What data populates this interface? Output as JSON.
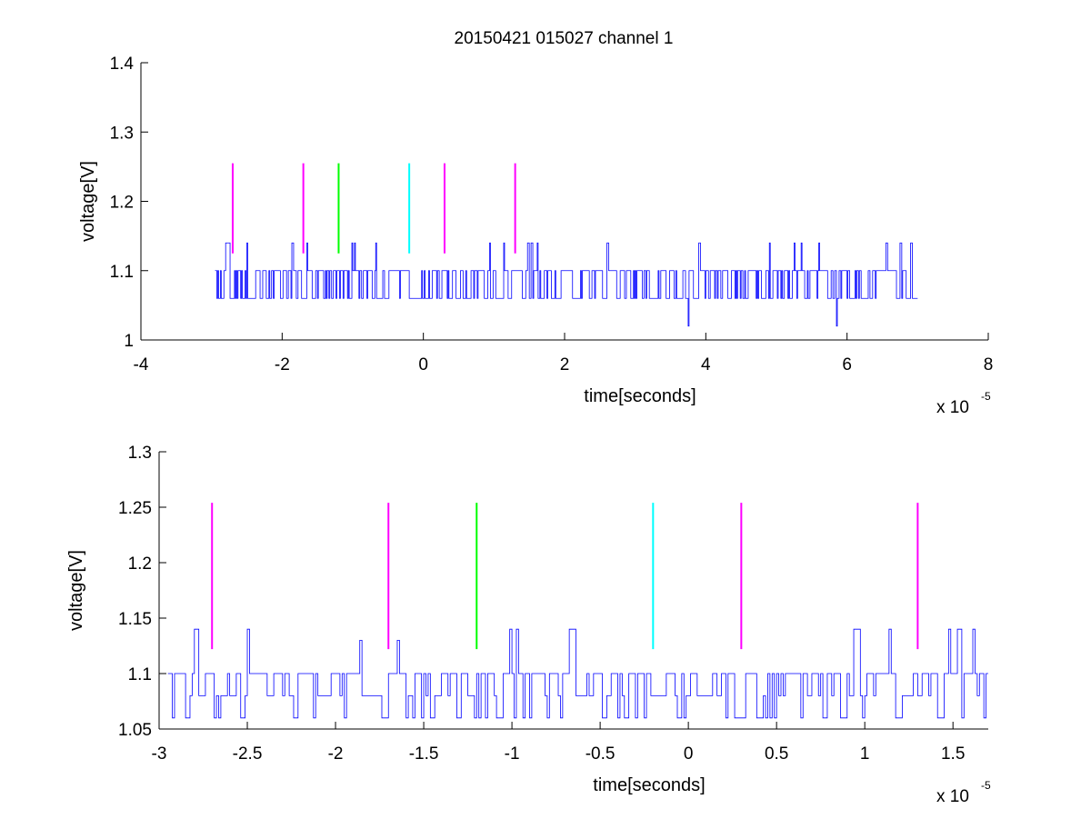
{
  "figure": {
    "title": "20150421 015027 channel 1",
    "background": "#ffffff"
  },
  "chart_data": [
    {
      "type": "line",
      "xlabel": "time[seconds]",
      "ylabel": "voltage[V]",
      "x_exponent_prefix": "x 10",
      "x_exponent_power": "-5",
      "xlim": [
        -4,
        8
      ],
      "ylim": [
        1,
        1.4
      ],
      "xticks": [
        -4,
        -2,
        0,
        2,
        4,
        6,
        8
      ],
      "xtick_labels": [
        "-4",
        "-2",
        "0",
        "2",
        "4",
        "6",
        "8"
      ],
      "yticks": [
        1,
        1.1,
        1.2,
        1.3,
        1.4
      ],
      "ytick_labels": [
        "1",
        "1.1",
        "1.2",
        "1.3",
        "1.4"
      ],
      "grid": false,
      "signal": {
        "color": "#0000ff",
        "x_range": [
          -2.95,
          7.0
        ],
        "levels": [
          1.06,
          1.1
        ],
        "spikes_up": [
          {
            "x": -2.8,
            "y": 1.14
          },
          {
            "x": -2.5,
            "y": 1.14
          },
          {
            "x": -1.86,
            "y": 1.14
          },
          {
            "x": -1.65,
            "y": 1.14
          },
          {
            "x": -1.01,
            "y": 1.14
          },
          {
            "x": -0.98,
            "y": 1.14
          },
          {
            "x": -0.67,
            "y": 1.14
          },
          {
            "x": 0.94,
            "y": 1.14
          },
          {
            "x": 1.14,
            "y": 1.14
          },
          {
            "x": 1.47,
            "y": 1.14
          },
          {
            "x": 1.52,
            "y": 1.14
          },
          {
            "x": 1.54,
            "y": 1.14
          },
          {
            "x": 1.61,
            "y": 1.14
          },
          {
            "x": 1.53,
            "y": 1.14
          },
          {
            "x": 2.6,
            "y": 1.14
          },
          {
            "x": 3.9,
            "y": 1.14
          },
          {
            "x": 4.9,
            "y": 1.14
          },
          {
            "x": 5.25,
            "y": 1.14
          },
          {
            "x": 5.35,
            "y": 1.14
          },
          {
            "x": 5.6,
            "y": 1.14
          },
          {
            "x": 6.55,
            "y": 1.14
          },
          {
            "x": 6.75,
            "y": 1.14
          },
          {
            "x": 6.9,
            "y": 1.14
          }
        ],
        "spikes_down": [
          {
            "x": 3.75,
            "y": 1.02
          },
          {
            "x": 5.85,
            "y": 1.02
          }
        ]
      },
      "markers": {
        "y_bottom": 1.125,
        "y_top": 1.255,
        "lines": [
          {
            "x": -2.7,
            "color": "#ff00ff"
          },
          {
            "x": -1.7,
            "color": "#ff00ff"
          },
          {
            "x": -1.2,
            "color": "#00ff00"
          },
          {
            "x": -0.2,
            "color": "#00ffff"
          },
          {
            "x": 0.3,
            "color": "#ff00ff"
          },
          {
            "x": 1.3,
            "color": "#ff00ff"
          }
        ]
      }
    },
    {
      "type": "line",
      "xlabel": "time[seconds]",
      "ylabel": "voltage[V]",
      "x_exponent_prefix": "x 10",
      "x_exponent_power": "-5",
      "xlim": [
        -3,
        1.7
      ],
      "ylim": [
        1.05,
        1.3
      ],
      "xticks": [
        -3,
        -2.5,
        -2,
        -1.5,
        -1,
        -0.5,
        0,
        0.5,
        1,
        1.5
      ],
      "xtick_labels": [
        "-3",
        "-2.5",
        "-2",
        "-1.5",
        "-1",
        "-0.5",
        "0",
        "0.5",
        "1",
        "1.5"
      ],
      "yticks": [
        1.05,
        1.1,
        1.15,
        1.2,
        1.25,
        1.3
      ],
      "ytick_labels": [
        "1.05",
        "1.1",
        "1.15",
        "1.2",
        "1.25",
        "1.3"
      ],
      "grid": false,
      "signal": {
        "color": "#0000ff",
        "x_range": [
          -2.95,
          1.7
        ],
        "levels": [
          1.06,
          1.08,
          1.1
        ],
        "spikes_up": [
          {
            "x": -2.8,
            "y": 1.14
          },
          {
            "x": -2.5,
            "y": 1.14
          },
          {
            "x": -1.86,
            "y": 1.13
          },
          {
            "x": -1.65,
            "y": 1.13
          },
          {
            "x": -1.01,
            "y": 1.14
          },
          {
            "x": -0.98,
            "y": 1.14
          },
          {
            "x": -0.67,
            "y": 1.14
          },
          {
            "x": 0.94,
            "y": 1.14
          },
          {
            "x": 1.14,
            "y": 1.14
          },
          {
            "x": 1.47,
            "y": 1.14
          },
          {
            "x": 1.52,
            "y": 1.14
          },
          {
            "x": 1.54,
            "y": 1.14
          },
          {
            "x": 1.61,
            "y": 1.14
          }
        ],
        "spikes_down": []
      },
      "markers": {
        "y_bottom": 1.122,
        "y_top": 1.254,
        "lines": [
          {
            "x": -2.7,
            "color": "#ff00ff"
          },
          {
            "x": -1.7,
            "color": "#ff00ff"
          },
          {
            "x": -1.2,
            "color": "#00ff00"
          },
          {
            "x": -0.2,
            "color": "#00ffff"
          },
          {
            "x": 0.3,
            "color": "#ff00ff"
          },
          {
            "x": 1.3,
            "color": "#ff00ff"
          }
        ]
      }
    }
  ]
}
